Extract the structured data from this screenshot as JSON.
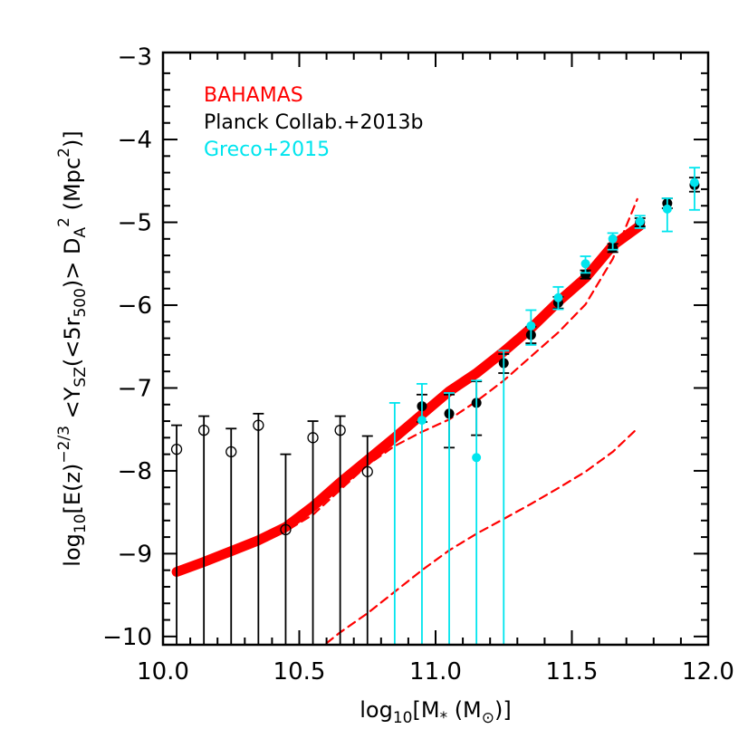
{
  "chart_data": {
    "type": "scatter",
    "xlabel_parts": {
      "pre": "log",
      "sub": "10",
      "main": "[M",
      "star": "*",
      "post": " (M",
      "post2": ")]"
    },
    "ylabel_parts": {
      "log": "log",
      "log_sub": "10",
      "bracket": "[E(z)",
      "exp": "−2/3",
      "ysz": " <Y",
      "ysz_sub": "SZ",
      "inner": "(<5r",
      "inner_sub": "500",
      "close": ")> D",
      "da_sub": "A",
      "da_sup": "2",
      "unit": " (Mpc",
      "unit_sup": "2",
      "unit_close": ")]"
    },
    "xlim": [
      10.0,
      12.0
    ],
    "ylim": [
      -10.1,
      -2.95
    ],
    "xticks": [
      10.0,
      10.5,
      11.0,
      11.5,
      12.0
    ],
    "xtick_labels": [
      "10.0",
      "10.5",
      "11.0",
      "11.5",
      "12.0"
    ],
    "yticks": [
      -10,
      -9,
      -8,
      -7,
      -6,
      -5,
      -4,
      -3
    ],
    "ytick_labels": [
      "−10",
      "−9",
      "−8",
      "−7",
      "−6",
      "−5",
      "−4",
      "−3"
    ],
    "legend": [
      {
        "label": "BAHAMAS",
        "color": "#ff0000"
      },
      {
        "label": "Planck Collab.+2013b",
        "color": "#000000"
      },
      {
        "label": "Greco+2015",
        "color": "#00e5ee"
      }
    ],
    "series": [
      {
        "name": "BAHAMAS",
        "style": "thick-line",
        "color": "#ff0000",
        "x": [
          10.05,
          10.15,
          10.25,
          10.35,
          10.45,
          10.55,
          10.65,
          10.75,
          10.85,
          10.95,
          11.05,
          11.15,
          11.25,
          11.35,
          11.45,
          11.55,
          11.65,
          11.75
        ],
        "y": [
          -9.22,
          -9.1,
          -8.97,
          -8.84,
          -8.68,
          -8.43,
          -8.14,
          -7.87,
          -7.6,
          -7.32,
          -7.04,
          -6.82,
          -6.56,
          -6.28,
          -5.96,
          -5.67,
          -5.28,
          -5.04
        ]
      },
      {
        "name": "",
        "style": "dashed",
        "color": "#ff0000",
        "x": [
          10.28,
          10.35,
          10.45,
          10.55,
          10.65,
          10.75,
          10.85,
          10.95,
          11.05,
          11.15,
          11.25,
          11.35,
          11.45,
          11.55,
          11.65,
          11.74
        ],
        "y": [
          -8.93,
          -8.86,
          -8.73,
          -8.53,
          -8.23,
          -7.93,
          -7.7,
          -7.53,
          -7.38,
          -7.16,
          -6.91,
          -6.62,
          -6.33,
          -5.99,
          -5.44,
          -4.72
        ]
      },
      {
        "name": "",
        "style": "dashed",
        "color": "#ff0000",
        "x": [
          10.6,
          10.65,
          10.75,
          10.85,
          10.95,
          11.05,
          11.15,
          11.25,
          11.35,
          11.45,
          11.55,
          11.65,
          11.74
        ],
        "y": [
          -10.08,
          -9.95,
          -9.72,
          -9.46,
          -9.2,
          -8.96,
          -8.76,
          -8.58,
          -8.4,
          -8.21,
          -8.01,
          -7.77,
          -7.49
        ]
      },
      {
        "name": "Planck Collab.+2013b",
        "style": "points",
        "color": "#000000",
        "points": [
          {
            "x": 10.05,
            "y": -7.74,
            "ylo": -10.1,
            "yhi": -7.45,
            "filled": false
          },
          {
            "x": 10.15,
            "y": -7.51,
            "ylo": -10.1,
            "yhi": -7.34,
            "filled": false
          },
          {
            "x": 10.25,
            "y": -7.77,
            "ylo": -10.1,
            "yhi": -7.49,
            "filled": false
          },
          {
            "x": 10.35,
            "y": -7.45,
            "ylo": -10.1,
            "yhi": -7.31,
            "filled": false
          },
          {
            "x": 10.45,
            "y": -8.71,
            "ylo": -10.1,
            "yhi": -7.8,
            "filled": false
          },
          {
            "x": 10.55,
            "y": -7.6,
            "ylo": -10.1,
            "yhi": -7.4,
            "filled": false
          },
          {
            "x": 10.65,
            "y": -7.51,
            "ylo": -10.1,
            "yhi": -7.34,
            "filled": false
          },
          {
            "x": 10.75,
            "y": -8.01,
            "ylo": -10.1,
            "yhi": -7.58,
            "filled": false
          },
          {
            "x": 10.95,
            "y": -7.22,
            "ylo": -7.41,
            "yhi": -7.08,
            "filled": true
          },
          {
            "x": 11.05,
            "y": -7.31,
            "ylo": -7.72,
            "yhi": -7.08,
            "filled": true
          },
          {
            "x": 11.15,
            "y": -7.18,
            "ylo": -7.57,
            "yhi": -6.92,
            "filled": true
          },
          {
            "x": 11.25,
            "y": -6.7,
            "ylo": -6.82,
            "yhi": -6.59,
            "filled": true
          },
          {
            "x": 11.35,
            "y": -6.36,
            "ylo": -6.46,
            "yhi": -6.26,
            "filled": true
          },
          {
            "x": 11.45,
            "y": -5.97,
            "ylo": -6.04,
            "yhi": -5.9,
            "filled": true
          },
          {
            "x": 11.55,
            "y": -5.63,
            "ylo": -5.68,
            "yhi": -5.58,
            "filled": true
          },
          {
            "x": 11.65,
            "y": -5.31,
            "ylo": -5.36,
            "yhi": -5.26,
            "filled": true
          },
          {
            "x": 11.75,
            "y": -5.0,
            "ylo": -5.05,
            "yhi": -4.95,
            "filled": true
          },
          {
            "x": 11.85,
            "y": -4.77,
            "ylo": -4.83,
            "yhi": -4.71,
            "filled": true
          },
          {
            "x": 11.95,
            "y": -4.55,
            "ylo": -4.63,
            "yhi": -4.46,
            "filled": true
          }
        ]
      },
      {
        "name": "Greco+2015",
        "style": "points",
        "color": "#00e5ee",
        "points": [
          {
            "x": 10.85,
            "y": null,
            "ylo": -10.1,
            "yhi": -7.18
          },
          {
            "x": 10.95,
            "y": -7.39,
            "ylo": -10.1,
            "yhi": -6.95
          },
          {
            "x": 11.05,
            "y": null,
            "ylo": -10.1,
            "yhi": -7.06
          },
          {
            "x": 11.15,
            "y": -7.84,
            "ylo": -10.1,
            "yhi": -6.91
          },
          {
            "x": 11.25,
            "y": null,
            "ylo": -10.1,
            "yhi": -6.55
          },
          {
            "x": 11.35,
            "y": -6.25,
            "ylo": -6.48,
            "yhi": -6.06
          },
          {
            "x": 11.45,
            "y": -5.91,
            "ylo": -6.05,
            "yhi": -5.78
          },
          {
            "x": 11.55,
            "y": -5.5,
            "ylo": -5.61,
            "yhi": -5.41
          },
          {
            "x": 11.65,
            "y": -5.2,
            "ylo": -5.33,
            "yhi": -5.13
          },
          {
            "x": 11.75,
            "y": -4.99,
            "ylo": -5.07,
            "yhi": -4.92
          },
          {
            "x": 11.85,
            "y": -4.84,
            "ylo": -5.11,
            "yhi": -4.71
          },
          {
            "x": 11.95,
            "y": -4.52,
            "ylo": -4.85,
            "yhi": -4.34
          }
        ]
      }
    ]
  }
}
